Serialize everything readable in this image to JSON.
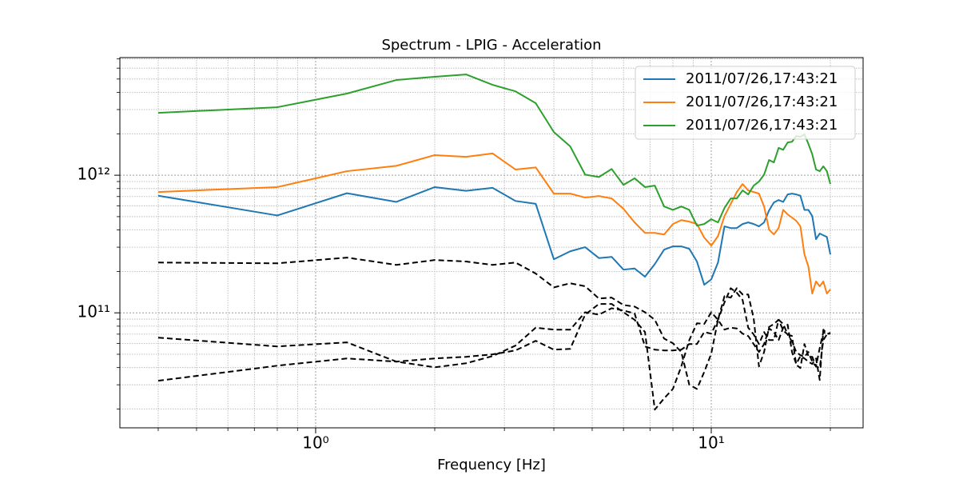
{
  "chart_data": {
    "type": "line",
    "title": "Spectrum - LPIG - Acceleration",
    "x_label": "Frequency [Hz]",
    "x_scale": "log",
    "y_scale": "log",
    "grid": true,
    "legend_position": "upper right",
    "x": [
      0.4,
      0.8,
      1.2,
      1.6,
      2.0,
      2.4,
      2.8,
      3.2,
      3.6,
      4.0,
      4.4,
      4.8,
      5.2,
      5.6,
      6.0,
      6.4,
      6.8,
      7.2,
      7.6,
      8.0,
      8.4,
      8.8,
      9.2,
      9.6,
      10.0,
      10.4,
      10.8,
      11.2,
      11.6,
      12.0,
      12.4,
      12.8,
      13.2,
      13.6,
      14.0,
      14.4,
      14.8,
      15.2,
      15.6,
      16.0,
      16.4,
      16.8,
      17.2,
      17.6,
      18.0,
      18.4,
      18.8,
      19.2,
      19.6,
      20.0
    ],
    "xlim": [
      0.32,
      24.2
    ],
    "ylim": [
      14600000000.0,
      7160000000000.0
    ],
    "xticks": [
      {
        "value": 1,
        "label": "10⁰"
      },
      {
        "value": 10,
        "label": "10¹"
      }
    ],
    "xminorticks": [
      0.4,
      0.5,
      0.6,
      0.7,
      0.8,
      0.9,
      2,
      3,
      4,
      5,
      6,
      7,
      8,
      9,
      20
    ],
    "yticks": [
      {
        "value": 100000000000.0,
        "label": "10¹¹"
      },
      {
        "value": 1000000000000.0,
        "label": "10¹²"
      }
    ],
    "yminorticks": [
      20000000000.0,
      30000000000.0,
      40000000000.0,
      50000000000.0,
      60000000000.0,
      70000000000.0,
      80000000000.0,
      90000000000.0,
      200000000000.0,
      300000000000.0,
      400000000000.0,
      500000000000.0,
      600000000000.0,
      700000000000.0,
      800000000000.0,
      900000000000.0,
      2000000000000.0,
      3000000000000.0,
      4000000000000.0,
      5000000000000.0,
      6000000000000.0,
      7000000000000.0
    ],
    "series": [
      {
        "name": "2011/07/26,17:43:21",
        "color": "#1f77b4",
        "linestyle": "solid",
        "values": [
          710000000000.0,
          510000000000.0,
          740000000000.0,
          640000000000.0,
          820000000000.0,
          770000000000.0,
          810000000000.0,
          650000000000.0,
          620000000000.0,
          245000000000.0,
          280000000000.0,
          300000000000.0,
          250000000000.0,
          255000000000.0,
          206000000000.0,
          210000000000.0,
          183000000000.0,
          226000000000.0,
          288000000000.0,
          304000000000.0,
          304000000000.0,
          292000000000.0,
          236000000000.0,
          160000000000.0,
          175000000000.0,
          232000000000.0,
          425000000000.0,
          413000000000.0,
          413000000000.0,
          442000000000.0,
          454000000000.0,
          442000000000.0,
          425000000000.0,
          454000000000.0,
          555000000000.0,
          634000000000.0,
          660000000000.0,
          640000000000.0,
          725000000000.0,
          735000000000.0,
          725000000000.0,
          710000000000.0,
          560000000000.0,
          560000000000.0,
          505000000000.0,
          343000000000.0,
          377000000000.0,
          366000000000.0,
          356000000000.0,
          266000000000.0
        ]
      },
      {
        "name": "2011/07/26,17:43:21",
        "color": "#ff7f0e",
        "linestyle": "solid",
        "values": [
          755000000000.0,
          820000000000.0,
          1070000000000.0,
          1170000000000.0,
          1400000000000.0,
          1360000000000.0,
          1440000000000.0,
          1100000000000.0,
          1140000000000.0,
          735000000000.0,
          735000000000.0,
          688000000000.0,
          706000000000.0,
          678000000000.0,
          570000000000.0,
          454000000000.0,
          381000000000.0,
          381000000000.0,
          371000000000.0,
          442000000000.0,
          472000000000.0,
          460000000000.0,
          442000000000.0,
          352000000000.0,
          308000000000.0,
          361000000000.0,
          505000000000.0,
          618000000000.0,
          755000000000.0,
          863000000000.0,
          776000000000.0,
          755000000000.0,
          735000000000.0,
          593000000000.0,
          403000000000.0,
          371000000000.0,
          413000000000.0,
          560000000000.0,
          519000000000.0,
          492000000000.0,
          466000000000.0,
          425000000000.0,
          266000000000.0,
          217000000000.0,
          138000000000.0,
          169000000000.0,
          156000000000.0,
          169000000000.0,
          138000000000.0,
          148000000000.0
        ]
      },
      {
        "name": "2011/07/26,17:43:21",
        "color": "#2ca02c",
        "linestyle": "solid",
        "values": [
          2840000000000.0,
          3120000000000.0,
          3920000000000.0,
          4920000000000.0,
          5190000000000.0,
          5400000000000.0,
          4540000000000.0,
          4070000000000.0,
          3340000000000.0,
          2060000000000.0,
          1620000000000.0,
          1010000000000.0,
          970000000000.0,
          1110000000000.0,
          850000000000.0,
          950000000000.0,
          820000000000.0,
          840000000000.0,
          593000000000.0,
          560000000000.0,
          593000000000.0,
          560000000000.0,
          430000000000.0,
          442000000000.0,
          479000000000.0,
          454000000000.0,
          578000000000.0,
          678000000000.0,
          678000000000.0,
          776000000000.0,
          725000000000.0,
          840000000000.0,
          900000000000.0,
          1010000000000.0,
          1290000000000.0,
          1240000000000.0,
          1580000000000.0,
          1530000000000.0,
          1730000000000.0,
          1750000000000.0,
          1930000000000.0,
          1900000000000.0,
          1980000000000.0,
          1690000000000.0,
          1420000000000.0,
          1100000000000.0,
          1070000000000.0,
          1160000000000.0,
          1070000000000.0,
          863000000000.0
        ]
      },
      {
        "color": "#000000",
        "linestyle": "dashed",
        "values": [
          232000000000.0,
          229000000000.0,
          252000000000.0,
          223000000000.0,
          242000000000.0,
          236000000000.0,
          223000000000.0,
          232000000000.0,
          193000000000.0,
          153000000000.0,
          164000000000.0,
          156000000000.0,
          127000000000.0,
          129000000000.0,
          114000000000.0,
          111000000000.0,
          101000000000.0,
          89000000000.0,
          65000000000.0,
          60100000000.0,
          51900000000.0,
          30000000000.0,
          28000000000.0,
          37200000000.0,
          50500000000.0,
          89000000000.0,
          132000000000.0,
          129000000000.0,
          151000000000.0,
          136000000000.0,
          136000000000.0,
          91000000000.0,
          40800000000.0,
          51900000000.0,
          79000000000.0,
          83000000000.0,
          89000000000.0,
          74500000000.0,
          69700000000.0,
          61800000000.0,
          51900000000.0,
          49200000000.0,
          47900000000.0,
          51900000000.0,
          44200000000.0,
          40800000000.0,
          55500000000.0,
          72500000000.0,
          69700000000.0,
          71600000000.0
        ]
      },
      {
        "color": "#000000",
        "linestyle": "dashed",
        "values": [
          66000000000.0,
          57000000000.0,
          61000000000.0,
          44200000000.0,
          40200000000.0,
          43000000000.0,
          48500000000.0,
          57800000000.0,
          78000000000.0,
          75500000000.0,
          75500000000.0,
          101000000000.0,
          97000000000.0,
          108000000000.0,
          104000000000.0,
          99000000000.0,
          57000000000.0,
          54000000000.0,
          53300000000.0,
          53300000000.0,
          54000000000.0,
          59300000000.0,
          59300000000.0,
          72500000000.0,
          70600000000.0,
          89000000000.0,
          119000000000.0,
          151000000000.0,
          140000000000.0,
          124000000000.0,
          78000000000.0,
          69700000000.0,
          59300000000.0,
          72500000000.0,
          63400000000.0,
          63400000000.0,
          89000000000.0,
          83000000000.0,
          69700000000.0,
          67800000000.0,
          41900000000.0,
          39700000000.0,
          59300000000.0,
          48500000000.0,
          47900000000.0,
          40800000000.0,
          39700000000.0,
          63400000000.0,
          69700000000.0,
          71600000000.0
        ]
      },
      {
        "color": "#000000",
        "linestyle": "dashed",
        "values": [
          32100000000.0,
          41300000000.0,
          46600000000.0,
          44200000000.0,
          46600000000.0,
          47900000000.0,
          49900000000.0,
          53300000000.0,
          62600000000.0,
          54000000000.0,
          54700000000.0,
          97000000000.0,
          116000000000.0,
          116000000000.0,
          101000000000.0,
          89000000000.0,
          72500000000.0,
          19800000000.0,
          23900000000.0,
          28000000000.0,
          40800000000.0,
          63400000000.0,
          84000000000.0,
          83000000000.0,
          101000000000.0,
          89000000000.0,
          75500000000.0,
          78000000000.0,
          77000000000.0,
          70600000000.0,
          67800000000.0,
          59300000000.0,
          51900000000.0,
          59300000000.0,
          77000000000.0,
          72500000000.0,
          63400000000.0,
          78000000000.0,
          82000000000.0,
          51900000000.0,
          42500000000.0,
          48500000000.0,
          46600000000.0,
          44200000000.0,
          42500000000.0,
          46600000000.0,
          32500000000.0,
          75500000000.0,
          70600000000.0,
          70600000000.0
        ]
      }
    ]
  }
}
